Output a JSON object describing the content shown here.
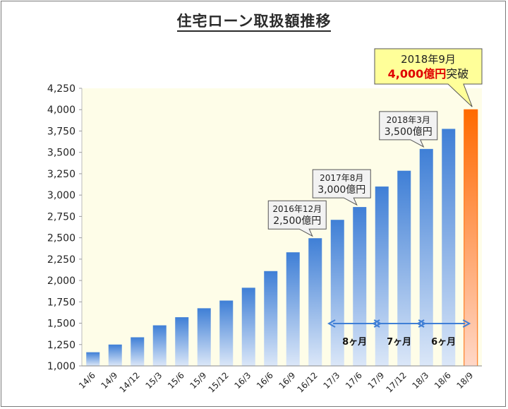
{
  "chart_data": {
    "type": "bar",
    "title": "住宅ローン取扱額推移",
    "xlabel": "",
    "ylabel": "",
    "ylim": [
      1000,
      4250
    ],
    "yticks": [
      "1,000",
      "1,250",
      "1,500",
      "1,750",
      "2,000",
      "2,250",
      "2,500",
      "2,750",
      "3,000",
      "3,250",
      "3,500",
      "3,750",
      "4,000",
      "4,250"
    ],
    "categories": [
      "14/6",
      "14/9",
      "14/12",
      "15/3",
      "15/6",
      "15/9",
      "15/12",
      "16/3",
      "16/6",
      "16/9",
      "16/12",
      "17/3",
      "17/6",
      "17/9",
      "17/12",
      "18/3",
      "18/6",
      "18/9"
    ],
    "values": [
      1160,
      1250,
      1335,
      1475,
      1570,
      1675,
      1765,
      1915,
      2110,
      2330,
      2495,
      2710,
      2860,
      3100,
      3285,
      3540,
      3775,
      4000
    ],
    "highlight_index": 17,
    "grid": false,
    "callouts": [
      {
        "index": 10,
        "line1": "2016年12月",
        "line2": "2,500億円"
      },
      {
        "index": 12,
        "line1": "2017年8月",
        "line2": "3,000億円"
      },
      {
        "index": 15,
        "line1": "2018年3月",
        "line2": "3,500億円"
      }
    ],
    "final_callout": {
      "line1": "2018年9月",
      "line2_red": "4,000億円",
      "line2_black": "突破"
    },
    "periods": [
      {
        "from_index": 11,
        "to_index": 13,
        "label": "8ヶ月"
      },
      {
        "from_index": 13,
        "to_index": 15,
        "label": "7ヶ月"
      },
      {
        "from_index": 15,
        "to_index": 17,
        "label": "6ヶ月"
      }
    ],
    "colors": {
      "bar_top": "#3f7fd6",
      "bar_bottom": "#dbe7f8",
      "highlight_top": "#ff6a00",
      "highlight_bottom": "#ffd7c7",
      "plot_bg": "#fefde8",
      "arrow": "#3f7fd6",
      "final_callout_bg": "#ffff99",
      "red_text": "#e00000"
    }
  }
}
